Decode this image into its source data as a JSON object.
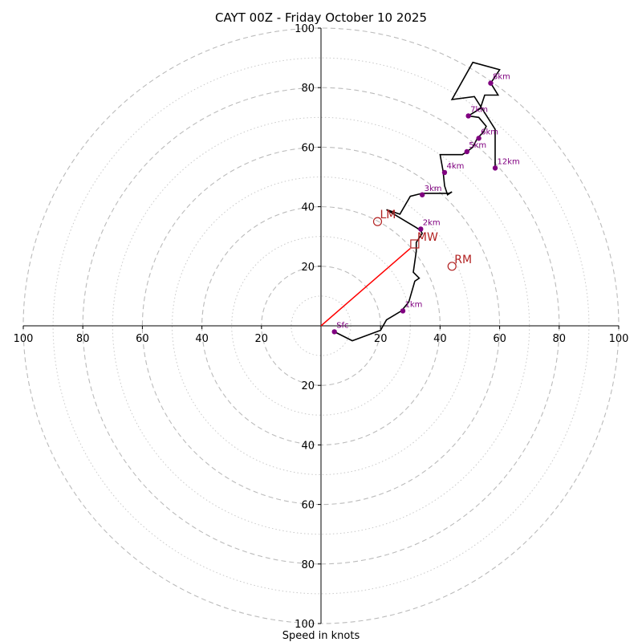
{
  "chart_data": {
    "type": "hodograph",
    "title": "CAYT 00Z - Friday October 10 2025",
    "xlabel": "Speed in knots",
    "xlim": [
      -100,
      100
    ],
    "ylim": [
      -100,
      100
    ],
    "ring_major": [
      20,
      40,
      60,
      80,
      100
    ],
    "ring_minor": [
      10,
      30,
      50,
      70,
      90
    ],
    "x_tick_labels": [
      {
        "value": -100,
        "label": "100"
      },
      {
        "value": -80,
        "label": "80"
      },
      {
        "value": -60,
        "label": "60"
      },
      {
        "value": -40,
        "label": "40"
      },
      {
        "value": -20,
        "label": "20"
      },
      {
        "value": 20,
        "label": "20"
      },
      {
        "value": 40,
        "label": "40"
      },
      {
        "value": 60,
        "label": "60"
      },
      {
        "value": 80,
        "label": "80"
      },
      {
        "value": 100,
        "label": "100"
      }
    ],
    "y_tick_labels": [
      {
        "value": 100,
        "label": "100"
      },
      {
        "value": 80,
        "label": "80"
      },
      {
        "value": 60,
        "label": "60"
      },
      {
        "value": 40,
        "label": "40"
      },
      {
        "value": 20,
        "label": "20"
      },
      {
        "value": -20,
        "label": "20"
      },
      {
        "value": -40,
        "label": "40"
      },
      {
        "value": -60,
        "label": "60"
      },
      {
        "value": -80,
        "label": "80"
      },
      {
        "value": -100,
        "label": "100"
      }
    ],
    "trace": [
      [
        4.5,
        -2
      ],
      [
        10.5,
        -5
      ],
      [
        20,
        -1.5
      ],
      [
        22,
        2
      ],
      [
        27,
        5
      ],
      [
        29.5,
        8
      ],
      [
        31.5,
        15
      ],
      [
        33,
        16
      ],
      [
        31,
        18
      ],
      [
        32,
        25
      ],
      [
        32,
        28
      ],
      [
        34,
        31
      ],
      [
        33.5,
        32
      ],
      [
        32,
        33
      ],
      [
        22,
        39
      ],
      [
        26.5,
        37.5
      ],
      [
        30,
        43.5
      ],
      [
        34,
        44.5
      ],
      [
        43,
        44.5
      ],
      [
        44,
        45
      ],
      [
        42.5,
        44
      ],
      [
        41.5,
        47
      ],
      [
        41,
        52
      ],
      [
        40,
        57.5
      ],
      [
        47.5,
        57.5
      ],
      [
        49,
        58.5
      ],
      [
        51,
        60
      ],
      [
        52.5,
        63
      ],
      [
        54.5,
        65
      ],
      [
        55.5,
        67
      ],
      [
        53,
        70
      ],
      [
        49.5,
        70.5
      ],
      [
        53.5,
        73
      ],
      [
        55,
        77.5
      ],
      [
        59.5,
        77.5
      ],
      [
        57,
        81.5
      ],
      [
        60,
        86
      ],
      [
        51,
        88.5
      ],
      [
        44,
        76
      ],
      [
        51.5,
        77
      ],
      [
        58.5,
        66
      ],
      [
        58.5,
        53
      ]
    ],
    "height_markers": [
      {
        "label": "Sfc",
        "u": 4.5,
        "v": -2
      },
      {
        "label": "1km",
        "u": 27.5,
        "v": 5
      },
      {
        "label": "2km",
        "u": 33.5,
        "v": 32.5
      },
      {
        "label": "3km",
        "u": 34,
        "v": 44
      },
      {
        "label": "4km",
        "u": 41.5,
        "v": 51.5
      },
      {
        "label": "5km",
        "u": 49,
        "v": 58.5
      },
      {
        "label": "6km",
        "u": 53,
        "v": 63
      },
      {
        "label": "7km",
        "u": 49.5,
        "v": 70.5
      },
      {
        "label": "8km",
        "u": 57,
        "v": 81.5
      },
      {
        "label": "12km",
        "u": 58.5,
        "v": 53
      }
    ],
    "storm_motion": [
      {
        "label": "LM",
        "u": 19,
        "v": 35,
        "marker": "circle"
      },
      {
        "label": "MW",
        "u": 31.5,
        "v": 27.5,
        "marker": "square"
      },
      {
        "label": "RM",
        "u": 44,
        "v": 20,
        "marker": "circle"
      }
    ],
    "shear_vector": {
      "from": [
        0,
        0
      ],
      "to": [
        30,
        26
      ]
    }
  },
  "colors": {
    "trace": "#000000",
    "height_marker": "#800080",
    "storm_motion": "#b22222",
    "shear_vector": "#ff0000",
    "ring": "#bbbbbb",
    "axis": "#000000"
  }
}
